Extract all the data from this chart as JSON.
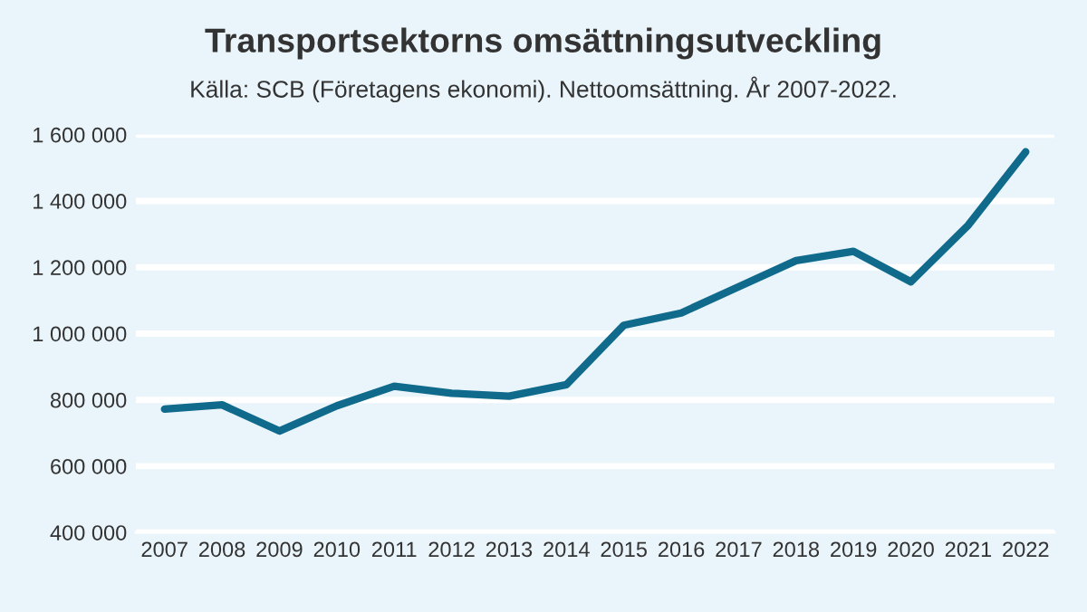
{
  "chart_data": {
    "type": "line",
    "title": "Transportsektorns omsättningsutveckling",
    "subtitle": "Källa: SCB (Företagens ekonomi). Nettoomsättning. År 2007-2022.",
    "categories": [
      "2007",
      "2008",
      "2009",
      "2010",
      "2011",
      "2012",
      "2013",
      "2014",
      "2015",
      "2016",
      "2017",
      "2018",
      "2019",
      "2020",
      "2021",
      "2022"
    ],
    "series": [
      {
        "color": "#0f6a8b",
        "values": [
          772000,
          785000,
          706000,
          782000,
          841000,
          820000,
          811000,
          846000,
          1025000,
          1062000,
          1141000,
          1220000,
          1248000,
          1156000,
          1327000,
          1548000
        ]
      }
    ],
    "ylim": [
      400000,
      1600000
    ],
    "yticks": [
      {
        "value": 400000,
        "label": "400 000"
      },
      {
        "value": 600000,
        "label": "600 000"
      },
      {
        "value": 800000,
        "label": "800 000"
      },
      {
        "value": 1000000,
        "label": "1 000 000"
      },
      {
        "value": 1200000,
        "label": "1 200 000"
      },
      {
        "value": 1400000,
        "label": "1 400 000"
      },
      {
        "value": 1600000,
        "label": "1 600 000"
      }
    ],
    "grid": "y",
    "marker": "none",
    "line_style": "solid"
  }
}
